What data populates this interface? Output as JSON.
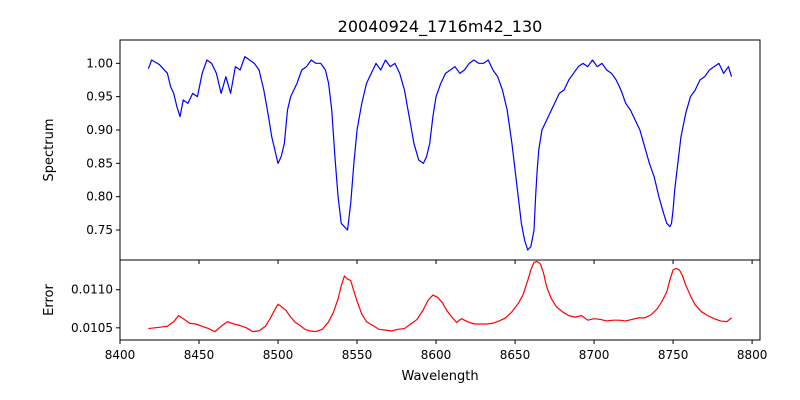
{
  "chart_data": [
    {
      "type": "line",
      "title": "20040924_1716m42_130",
      "xlabel": "",
      "ylabel": "Spectrum",
      "xlim": [
        8400,
        8805
      ],
      "ylim": [
        0.705,
        1.035
      ],
      "yticks": [
        0.75,
        0.8,
        0.85,
        0.9,
        0.95,
        1.0
      ],
      "ytick_labels": [
        "0.75",
        "0.80",
        "0.85",
        "0.90",
        "0.95",
        "1.00"
      ],
      "grid": false,
      "series": [
        {
          "color": "#0000ff",
          "x": [
            8418,
            8420,
            8425,
            8430,
            8432,
            8434,
            8436,
            8438,
            8440,
            8443,
            8446,
            8449,
            8452,
            8455,
            8458,
            8461,
            8464,
            8467,
            8470,
            8473,
            8476,
            8479,
            8482,
            8485,
            8488,
            8491,
            8494,
            8496,
            8498,
            8500,
            8502,
            8504,
            8506,
            8508,
            8510,
            8512,
            8515,
            8518,
            8521,
            8524,
            8527,
            8530,
            8532,
            8534,
            8536,
            8538,
            8540,
            8542,
            8544,
            8546,
            8548,
            8550,
            8553,
            8556,
            8559,
            8562,
            8565,
            8568,
            8571,
            8574,
            8577,
            8580,
            8583,
            8586,
            8589,
            8592,
            8594,
            8596,
            8598,
            8600,
            8603,
            8606,
            8609,
            8612,
            8615,
            8618,
            8621,
            8624,
            8627,
            8630,
            8633,
            8636,
            8639,
            8642,
            8645,
            8648,
            8651,
            8654,
            8656,
            8658,
            8660,
            8662,
            8663,
            8664,
            8665,
            8667,
            8669,
            8672,
            8675,
            8678,
            8681,
            8684,
            8687,
            8690,
            8693,
            8696,
            8699,
            8702,
            8705,
            8708,
            8711,
            8714,
            8717,
            8720,
            8723,
            8726,
            8729,
            8732,
            8735,
            8738,
            8741,
            8744,
            8746,
            8748,
            8749,
            8750,
            8751,
            8753,
            8755,
            8758,
            8761,
            8764,
            8767,
            8770,
            8773,
            8776,
            8779,
            8782,
            8785,
            8787
          ],
          "y": [
            0.992,
            1.005,
            0.998,
            0.985,
            0.965,
            0.955,
            0.935,
            0.92,
            0.945,
            0.94,
            0.955,
            0.95,
            0.985,
            1.005,
            1.0,
            0.985,
            0.955,
            0.98,
            0.955,
            0.995,
            0.99,
            1.01,
            1.005,
            1.0,
            0.99,
            0.96,
            0.92,
            0.89,
            0.87,
            0.85,
            0.86,
            0.88,
            0.93,
            0.95,
            0.96,
            0.97,
            0.99,
            0.995,
            1.005,
            1.0,
            1.0,
            0.99,
            0.97,
            0.93,
            0.86,
            0.8,
            0.76,
            0.755,
            0.75,
            0.79,
            0.85,
            0.9,
            0.94,
            0.97,
            0.985,
            1.0,
            0.99,
            1.005,
            0.995,
            1.0,
            0.985,
            0.96,
            0.92,
            0.88,
            0.855,
            0.85,
            0.86,
            0.88,
            0.92,
            0.95,
            0.97,
            0.985,
            0.99,
            0.995,
            0.985,
            0.99,
            1.0,
            1.005,
            1.0,
            1.0,
            1.005,
            0.99,
            0.98,
            0.96,
            0.93,
            0.88,
            0.82,
            0.76,
            0.735,
            0.72,
            0.725,
            0.75,
            0.8,
            0.84,
            0.87,
            0.9,
            0.91,
            0.925,
            0.94,
            0.955,
            0.96,
            0.975,
            0.985,
            0.995,
            1.0,
            0.995,
            1.005,
            0.995,
            1.0,
            0.99,
            0.985,
            0.975,
            0.96,
            0.94,
            0.93,
            0.915,
            0.9,
            0.875,
            0.85,
            0.83,
            0.8,
            0.775,
            0.76,
            0.755,
            0.76,
            0.78,
            0.81,
            0.85,
            0.89,
            0.925,
            0.95,
            0.96,
            0.975,
            0.98,
            0.99,
            0.995,
            1.0,
            0.985,
            0.995,
            0.98
          ]
        }
      ]
    },
    {
      "type": "line",
      "title": "",
      "xlabel": "Wavelength",
      "ylabel": "Error",
      "xlim": [
        8400,
        8805
      ],
      "ylim": [
        0.01034,
        0.01139
      ],
      "xticks": [
        8400,
        8450,
        8500,
        8550,
        8600,
        8650,
        8700,
        8750,
        8800
      ],
      "xtick_labels": [
        "8400",
        "8450",
        "8500",
        "8550",
        "8600",
        "8650",
        "8700",
        "8750",
        "8800"
      ],
      "yticks": [
        0.0105,
        0.011
      ],
      "ytick_labels": [
        "0.0105",
        "0.0110"
      ],
      "grid": false,
      "series": [
        {
          "color": "#ff0000",
          "x": [
            8418,
            8422,
            8426,
            8430,
            8434,
            8437,
            8440,
            8444,
            8448,
            8452,
            8456,
            8460,
            8464,
            8468,
            8472,
            8476,
            8480,
            8484,
            8488,
            8492,
            8495,
            8498,
            8500,
            8502,
            8505,
            8508,
            8511,
            8514,
            8517,
            8520,
            8524,
            8528,
            8532,
            8535,
            8538,
            8540,
            8542,
            8544,
            8546,
            8548,
            8550,
            8553,
            8556,
            8560,
            8564,
            8568,
            8572,
            8576,
            8580,
            8584,
            8588,
            8592,
            8595,
            8598,
            8601,
            8604,
            8607,
            8610,
            8613,
            8616,
            8620,
            8624,
            8628,
            8632,
            8636,
            8640,
            8644,
            8648,
            8652,
            8655,
            8658,
            8660,
            8662,
            8664,
            8666,
            8668,
            8670,
            8673,
            8676,
            8680,
            8684,
            8688,
            8692,
            8696,
            8700,
            8704,
            8708,
            8712,
            8716,
            8720,
            8724,
            8728,
            8732,
            8736,
            8740,
            8743,
            8746,
            8748,
            8750,
            8752,
            8754,
            8756,
            8758,
            8761,
            8764,
            8768,
            8772,
            8776,
            8780,
            8784,
            8787
          ],
          "y": [
            0.01049,
            0.0105,
            0.01051,
            0.01052,
            0.01058,
            0.01066,
            0.01062,
            0.01056,
            0.01055,
            0.01052,
            0.01049,
            0.01045,
            0.01052,
            0.01058,
            0.01055,
            0.01053,
            0.0105,
            0.01045,
            0.01046,
            0.01052,
            0.01062,
            0.01074,
            0.01081,
            0.01078,
            0.01073,
            0.01064,
            0.01057,
            0.01053,
            0.01048,
            0.01046,
            0.01045,
            0.01048,
            0.01058,
            0.0107,
            0.01088,
            0.01105,
            0.01118,
            0.01114,
            0.01112,
            0.01098,
            0.01085,
            0.01068,
            0.01058,
            0.01053,
            0.01048,
            0.01047,
            0.01046,
            0.01048,
            0.01049,
            0.01055,
            0.01061,
            0.01074,
            0.01086,
            0.01093,
            0.0109,
            0.01083,
            0.01072,
            0.01064,
            0.01057,
            0.01062,
            0.01058,
            0.01055,
            0.01055,
            0.01055,
            0.01056,
            0.01059,
            0.01063,
            0.01071,
            0.01082,
            0.01093,
            0.01112,
            0.01126,
            0.01136,
            0.01137,
            0.01134,
            0.01122,
            0.01104,
            0.01088,
            0.01078,
            0.01071,
            0.01066,
            0.01064,
            0.01066,
            0.0106,
            0.01062,
            0.01061,
            0.01059,
            0.0106,
            0.0106,
            0.01059,
            0.01061,
            0.01063,
            0.01063,
            0.01067,
            0.01075,
            0.01085,
            0.01097,
            0.01113,
            0.01126,
            0.01128,
            0.01126,
            0.01118,
            0.01106,
            0.01092,
            0.0108,
            0.01071,
            0.01066,
            0.01062,
            0.01059,
            0.01058,
            0.01063
          ]
        }
      ]
    }
  ]
}
